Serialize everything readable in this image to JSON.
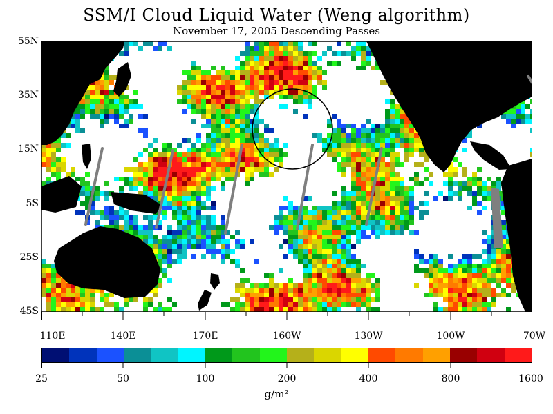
{
  "title": "SSM/I Cloud Liquid Water (Weng algorithm)",
  "subtitle": "November 17, 2005  Descending Passes",
  "axes": {
    "lat_labels": [
      "55N",
      "35N",
      "15N",
      "5S",
      "25S",
      "45S"
    ],
    "lon_labels": [
      "110E",
      "140E",
      "170E",
      "160W",
      "130W",
      "100W",
      "70W"
    ]
  },
  "colorbar": {
    "colors": [
      "#000f73",
      "#0033bb",
      "#1b52ff",
      "#0b8f96",
      "#10c4c4",
      "#00f5ff",
      "#00991a",
      "#22c41e",
      "#22f51b",
      "#b5b01a",
      "#dad600",
      "#ffff00",
      "#ff4a00",
      "#ff7a00",
      "#ffa000",
      "#990000",
      "#d00010",
      "#ff1a1a"
    ],
    "tick_labels": [
      "25",
      "50",
      "100",
      "200",
      "400",
      "800",
      "1600"
    ],
    "units": "g/m²"
  },
  "map_colors": {
    "ocean": "#ffffff",
    "land": "#000000",
    "gap": "#7f7f7f"
  },
  "annotation": {
    "shape": "circle",
    "center": {
      "lat": 25,
      "lon": "-161"
    },
    "color": "#000000"
  }
}
